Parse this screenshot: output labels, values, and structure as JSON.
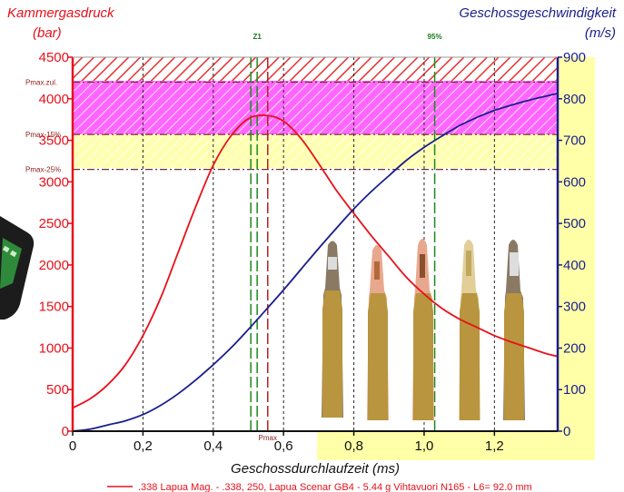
{
  "chart_data": {
    "type": "line",
    "title_left": "Kammergasdruck",
    "unit_left": "(bar)",
    "title_right": "Geschossgeschwindigkeit",
    "unit_right": "(m/s)",
    "xlabel": "Geschossdurchlaufzeit (ms)",
    "xlim": [
      0,
      1.38
    ],
    "ylim_left": [
      0,
      4500
    ],
    "ylim_right": [
      0,
      900
    ],
    "x_ticks": [
      "0",
      "0,2",
      "0,4",
      "0,6",
      "0,8",
      "1,0",
      "1,2"
    ],
    "y_left_ticks": [
      "0",
      "500",
      "1000",
      "1500",
      "2000",
      "2500",
      "3000",
      "3500",
      "4000",
      "4500"
    ],
    "y_right_ticks": [
      "0",
      "100",
      "200",
      "300",
      "400",
      "500",
      "600",
      "700",
      "800",
      "900"
    ],
    "limit_lines": [
      {
        "label": "Pmax.zul.",
        "value": 4200
      },
      {
        "label": "Pmax-15%",
        "value": 3570
      },
      {
        "label": "Pmax-25%",
        "value": 3150
      }
    ],
    "markers": [
      {
        "label": "Z1",
        "x": 0.525
      },
      {
        "label": "Pmax",
        "x": 0.555
      },
      {
        "label": "95%",
        "x": 1.03
      }
    ],
    "series": [
      {
        "name": ".338 Lapua Mag. - .338, 250, Lapua Scenar GB4 - 5.44 g Vihtavuori N165 - L6= 92.0 mm",
        "axis": "left",
        "color": "#e8101a",
        "x": [
          0,
          0.05,
          0.1,
          0.15,
          0.2,
          0.25,
          0.3,
          0.35,
          0.4,
          0.45,
          0.5,
          0.55,
          0.6,
          0.65,
          0.7,
          0.75,
          0.8,
          0.85,
          0.9,
          0.95,
          1.0,
          1.05,
          1.1,
          1.15,
          1.2,
          1.25,
          1.3,
          1.35,
          1.38
        ],
        "y": [
          280,
          390,
          560,
          800,
          1150,
          1600,
          2150,
          2700,
          3200,
          3550,
          3760,
          3800,
          3730,
          3520,
          3220,
          2900,
          2620,
          2350,
          2100,
          1850,
          1650,
          1480,
          1350,
          1250,
          1150,
          1070,
          1000,
          930,
          900
        ]
      },
      {
        "name": "Geschossgeschwindigkeit",
        "axis": "right",
        "color": "#1a1e8c",
        "x": [
          0,
          0.05,
          0.1,
          0.15,
          0.2,
          0.25,
          0.3,
          0.35,
          0.4,
          0.45,
          0.5,
          0.55,
          0.6,
          0.65,
          0.7,
          0.75,
          0.8,
          0.85,
          0.9,
          0.95,
          1.0,
          1.05,
          1.1,
          1.15,
          1.2,
          1.25,
          1.3,
          1.35,
          1.38
        ],
        "y": [
          0,
          5,
          15,
          25,
          40,
          62,
          90,
          123,
          160,
          200,
          245,
          292,
          340,
          390,
          440,
          488,
          535,
          577,
          615,
          652,
          683,
          710,
          735,
          755,
          772,
          785,
          797,
          807,
          813
        ]
      }
    ]
  },
  "colors": {
    "pressure": "#e8101a",
    "velocity": "#1a1e8c",
    "marker_green": "#1a8a1a",
    "marker_red": "#b22222",
    "band_yellow": "#ffffa8",
    "band_magenta": "#ff60ff",
    "hatch_red": "#e83030"
  }
}
